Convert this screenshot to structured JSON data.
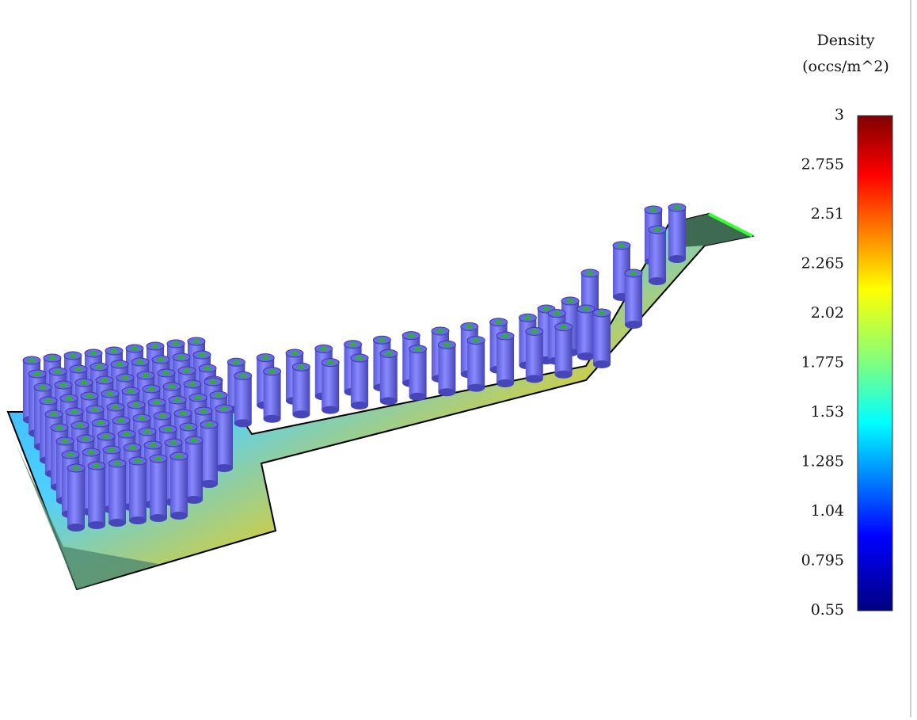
{
  "colorbar": {
    "title": "Density",
    "unit": "(occs/m^2)",
    "ticks": [
      3,
      2.755,
      2.51,
      2.265,
      2.02,
      1.775,
      1.53,
      1.285,
      1.04,
      0.795,
      0.55
    ]
  }
}
